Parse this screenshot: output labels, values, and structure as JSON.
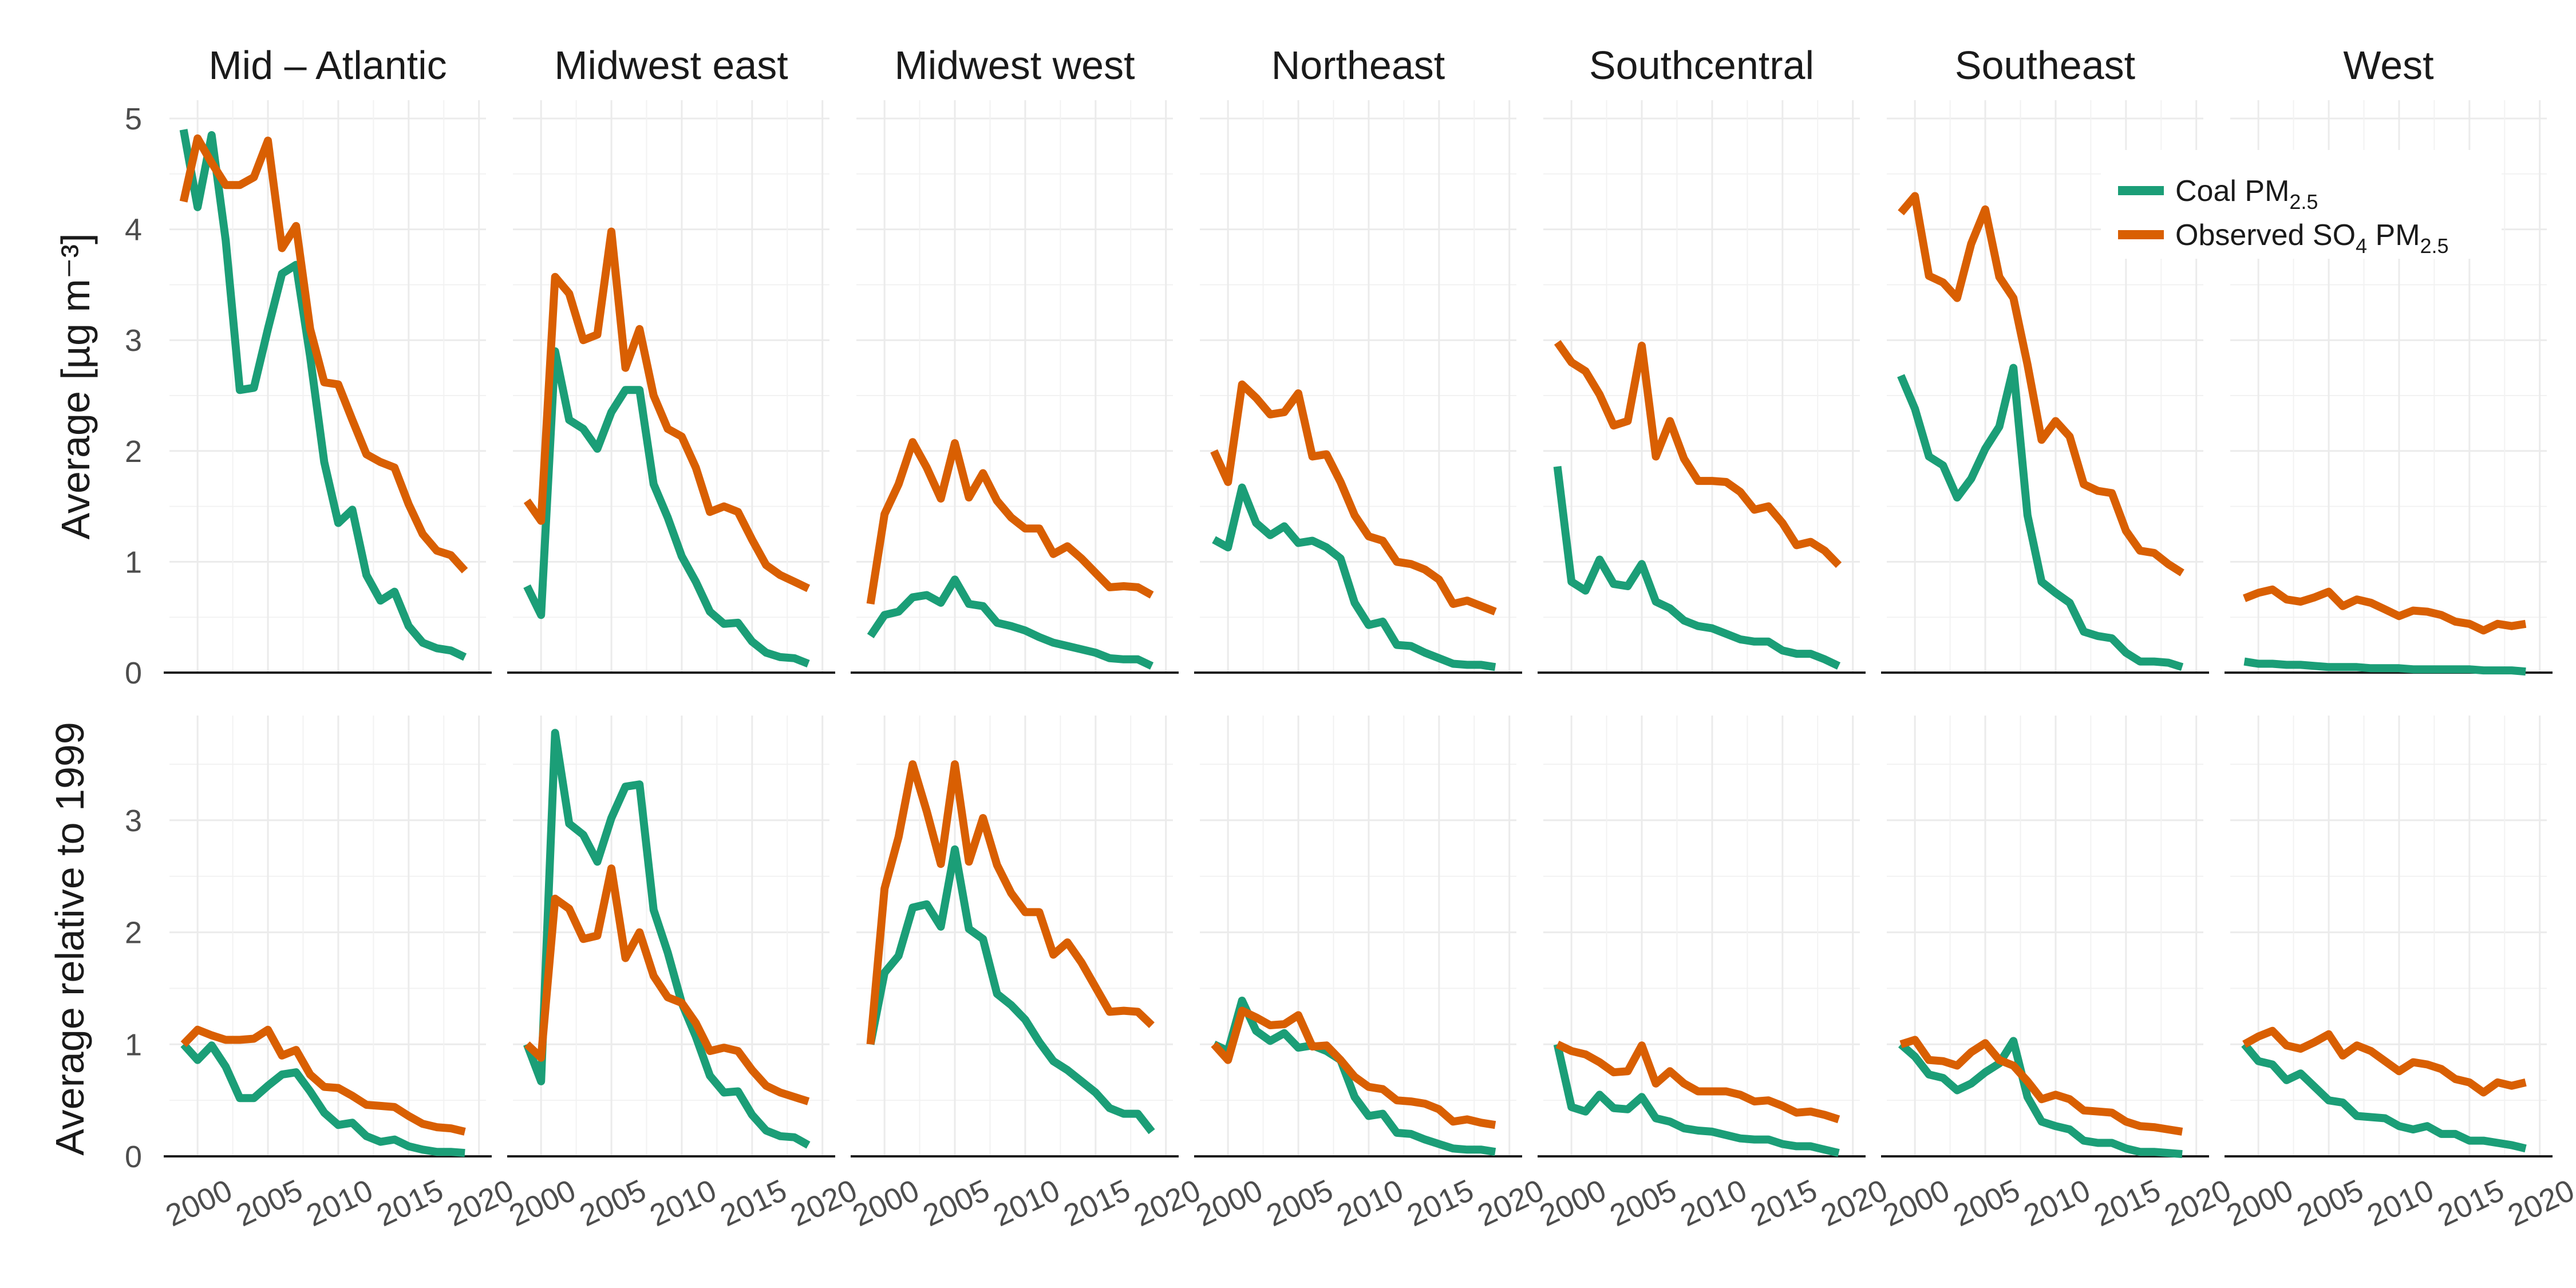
{
  "chart_data": {
    "type": "line",
    "x_axis": {
      "ticks": [
        2000,
        2005,
        2010,
        2015,
        2020
      ],
      "labels": [
        "2000",
        "2005",
        "2010",
        "2015",
        "2020"
      ],
      "range": [
        1998,
        2020.5
      ]
    },
    "panels": [
      "Mid – Atlantic",
      "Midwest east",
      "Midwest west",
      "Northeast",
      "Southcentral",
      "Southeast",
      "West"
    ],
    "rows": [
      {
        "ylabel": "Average [µg m⁻³]",
        "ylim": [
          0,
          5
        ],
        "yticks": [
          0,
          1,
          2,
          3,
          4,
          5
        ],
        "ytick_labels": [
          "0",
          "1",
          "2",
          "3",
          "4",
          "5"
        ]
      },
      {
        "ylabel": "Average relative to 1999",
        "ylim": [
          0,
          4
        ],
        "yticks": [
          0,
          1,
          2,
          3
        ],
        "ytick_labels": [
          "0",
          "1",
          "2",
          "3"
        ]
      }
    ],
    "legend": {
      "placement": "top-right",
      "entries": [
        {
          "key": "coal",
          "text": "Coal PM",
          "sub": "2.5",
          "color": "#1b9e77"
        },
        {
          "key": "so4",
          "text": "Observed SO",
          "sub1": "4",
          "text2": " PM",
          "sub2": "2.5",
          "color": "#d95f02"
        }
      ]
    },
    "x": [
      1999,
      2000,
      2001,
      2002,
      2003,
      2004,
      2005,
      2006,
      2007,
      2008,
      2009,
      2010,
      2011,
      2012,
      2013,
      2014,
      2015,
      2016,
      2017,
      2018,
      2019
    ],
    "series": {
      "absolute": {
        "coal": [
          [
            4.9,
            4.2,
            4.85,
            3.9,
            2.55,
            2.57,
            3.1,
            3.6,
            3.68,
            2.85,
            1.9,
            1.35,
            1.47,
            0.88,
            0.65,
            0.73,
            0.42,
            0.27,
            0.22,
            0.2,
            0.14
          ],
          [
            0.78,
            0.52,
            2.9,
            2.28,
            2.2,
            2.02,
            2.35,
            2.55,
            2.55,
            1.7,
            1.4,
            1.05,
            0.82,
            0.55,
            0.44,
            0.45,
            0.28,
            0.18,
            0.14,
            0.13,
            0.08
          ],
          [
            0.33,
            0.52,
            0.55,
            0.68,
            0.7,
            0.63,
            0.84,
            0.62,
            0.6,
            0.45,
            0.42,
            0.38,
            0.32,
            0.27,
            0.24,
            0.21,
            0.18,
            0.13,
            0.12,
            0.12,
            0.06
          ],
          [
            1.2,
            1.13,
            1.67,
            1.35,
            1.24,
            1.32,
            1.17,
            1.19,
            1.13,
            1.03,
            0.63,
            0.43,
            0.46,
            0.25,
            0.24,
            0.18,
            0.13,
            0.08,
            0.07,
            0.07,
            0.05
          ],
          [
            1.86,
            0.82,
            0.74,
            1.02,
            0.8,
            0.78,
            0.98,
            0.64,
            0.58,
            0.47,
            0.42,
            0.4,
            0.35,
            0.3,
            0.28,
            0.28,
            0.2,
            0.17,
            0.17,
            0.12,
            0.06
          ],
          [
            2.68,
            2.38,
            1.95,
            1.87,
            1.58,
            1.75,
            2.02,
            2.22,
            2.75,
            1.42,
            0.82,
            0.72,
            0.63,
            0.37,
            0.33,
            0.31,
            0.18,
            0.1,
            0.1,
            0.09,
            0.05
          ],
          [
            0.1,
            0.08,
            0.08,
            0.07,
            0.07,
            0.06,
            0.05,
            0.05,
            0.05,
            0.04,
            0.04,
            0.04,
            0.03,
            0.03,
            0.03,
            0.03,
            0.03,
            0.02,
            0.02,
            0.02,
            0.01
          ]
        ],
        "so4": [
          [
            4.25,
            4.82,
            4.6,
            4.4,
            4.4,
            4.47,
            4.8,
            3.83,
            4.03,
            3.1,
            2.62,
            2.6,
            2.28,
            1.97,
            1.9,
            1.85,
            1.52,
            1.25,
            1.1,
            1.06,
            0.92
          ],
          [
            1.55,
            1.37,
            3.57,
            3.42,
            3.0,
            3.05,
            3.98,
            2.75,
            3.1,
            2.5,
            2.2,
            2.13,
            1.85,
            1.45,
            1.5,
            1.45,
            1.2,
            0.97,
            0.88,
            0.82,
            0.76
          ],
          [
            0.62,
            1.43,
            1.7,
            2.08,
            1.85,
            1.57,
            2.07,
            1.58,
            1.8,
            1.55,
            1.4,
            1.3,
            1.3,
            1.07,
            1.14,
            1.03,
            0.9,
            0.77,
            0.78,
            0.77,
            0.7
          ],
          [
            2.0,
            1.72,
            2.6,
            2.48,
            2.33,
            2.35,
            2.52,
            1.95,
            1.97,
            1.72,
            1.42,
            1.23,
            1.19,
            1.0,
            0.98,
            0.93,
            0.84,
            0.62,
            0.65,
            0.6,
            0.55
          ],
          [
            2.98,
            2.8,
            2.72,
            2.51,
            2.23,
            2.27,
            2.95,
            1.95,
            2.27,
            1.93,
            1.73,
            1.73,
            1.72,
            1.63,
            1.47,
            1.5,
            1.35,
            1.15,
            1.18,
            1.1,
            0.97
          ],
          [
            4.15,
            4.3,
            3.58,
            3.52,
            3.38,
            3.87,
            4.18,
            3.57,
            3.38,
            2.78,
            2.1,
            2.27,
            2.13,
            1.7,
            1.64,
            1.62,
            1.28,
            1.1,
            1.08,
            0.98,
            0.9
          ],
          [
            0.67,
            0.72,
            0.75,
            0.66,
            0.64,
            0.68,
            0.73,
            0.6,
            0.66,
            0.63,
            0.57,
            0.51,
            0.56,
            0.55,
            0.52,
            0.46,
            0.44,
            0.38,
            0.44,
            0.42,
            0.44
          ]
        ]
      },
      "relative": {
        "coal": [
          [
            1.0,
            0.86,
            0.99,
            0.8,
            0.52,
            0.52,
            0.63,
            0.73,
            0.75,
            0.58,
            0.39,
            0.28,
            0.3,
            0.18,
            0.13,
            0.15,
            0.09,
            0.06,
            0.04,
            0.04,
            0.03
          ],
          [
            1.0,
            0.67,
            3.78,
            2.97,
            2.87,
            2.63,
            3.02,
            3.3,
            3.32,
            2.2,
            1.82,
            1.37,
            1.07,
            0.72,
            0.57,
            0.58,
            0.37,
            0.23,
            0.18,
            0.17,
            0.1
          ],
          [
            1.0,
            1.64,
            1.79,
            2.22,
            2.25,
            2.05,
            2.74,
            2.03,
            1.94,
            1.45,
            1.35,
            1.22,
            1.02,
            0.85,
            0.77,
            0.67,
            0.57,
            0.43,
            0.38,
            0.38,
            0.22
          ],
          [
            1.0,
            0.94,
            1.39,
            1.12,
            1.03,
            1.1,
            0.97,
            0.99,
            0.94,
            0.86,
            0.53,
            0.36,
            0.38,
            0.21,
            0.2,
            0.15,
            0.11,
            0.07,
            0.06,
            0.06,
            0.04
          ],
          [
            1.0,
            0.44,
            0.4,
            0.55,
            0.43,
            0.42,
            0.53,
            0.34,
            0.31,
            0.25,
            0.23,
            0.22,
            0.19,
            0.16,
            0.15,
            0.15,
            0.11,
            0.09,
            0.09,
            0.06,
            0.03
          ],
          [
            1.0,
            0.89,
            0.73,
            0.7,
            0.59,
            0.65,
            0.75,
            0.83,
            1.03,
            0.53,
            0.31,
            0.27,
            0.24,
            0.14,
            0.12,
            0.12,
            0.07,
            0.04,
            0.04,
            0.03,
            0.02
          ],
          [
            1.0,
            0.85,
            0.82,
            0.68,
            0.74,
            0.62,
            0.5,
            0.48,
            0.36,
            0.35,
            0.34,
            0.27,
            0.24,
            0.27,
            0.2,
            0.2,
            0.14,
            0.14,
            0.12,
            0.1,
            0.07
          ]
        ],
        "so4": [
          [
            1.0,
            1.13,
            1.08,
            1.04,
            1.04,
            1.05,
            1.13,
            0.9,
            0.95,
            0.73,
            0.62,
            0.61,
            0.54,
            0.46,
            0.45,
            0.44,
            0.36,
            0.29,
            0.26,
            0.25,
            0.22
          ],
          [
            1.0,
            0.88,
            2.3,
            2.21,
            1.94,
            1.97,
            2.57,
            1.77,
            2.0,
            1.61,
            1.42,
            1.37,
            1.19,
            0.94,
            0.97,
            0.94,
            0.77,
            0.63,
            0.57,
            0.53,
            0.49
          ],
          [
            1.0,
            2.39,
            2.85,
            3.5,
            3.08,
            2.61,
            3.5,
            2.63,
            3.02,
            2.6,
            2.35,
            2.18,
            2.18,
            1.8,
            1.91,
            1.73,
            1.51,
            1.29,
            1.3,
            1.29,
            1.17
          ],
          [
            1.0,
            0.86,
            1.3,
            1.24,
            1.17,
            1.18,
            1.26,
            0.98,
            0.99,
            0.86,
            0.71,
            0.62,
            0.6,
            0.5,
            0.49,
            0.47,
            0.42,
            0.31,
            0.33,
            0.3,
            0.28
          ],
          [
            1.0,
            0.94,
            0.91,
            0.84,
            0.75,
            0.76,
            0.99,
            0.65,
            0.76,
            0.65,
            0.58,
            0.58,
            0.58,
            0.55,
            0.49,
            0.5,
            0.45,
            0.39,
            0.4,
            0.37,
            0.33
          ],
          [
            1.0,
            1.04,
            0.86,
            0.85,
            0.81,
            0.93,
            1.01,
            0.86,
            0.81,
            0.67,
            0.51,
            0.55,
            0.51,
            0.41,
            0.4,
            0.39,
            0.31,
            0.27,
            0.26,
            0.24,
            0.22
          ],
          [
            1.0,
            1.07,
            1.12,
            0.99,
            0.96,
            1.02,
            1.09,
            0.9,
            0.99,
            0.94,
            0.85,
            0.76,
            0.84,
            0.82,
            0.78,
            0.69,
            0.66,
            0.57,
            0.66,
            0.63,
            0.66
          ]
        ]
      }
    }
  }
}
